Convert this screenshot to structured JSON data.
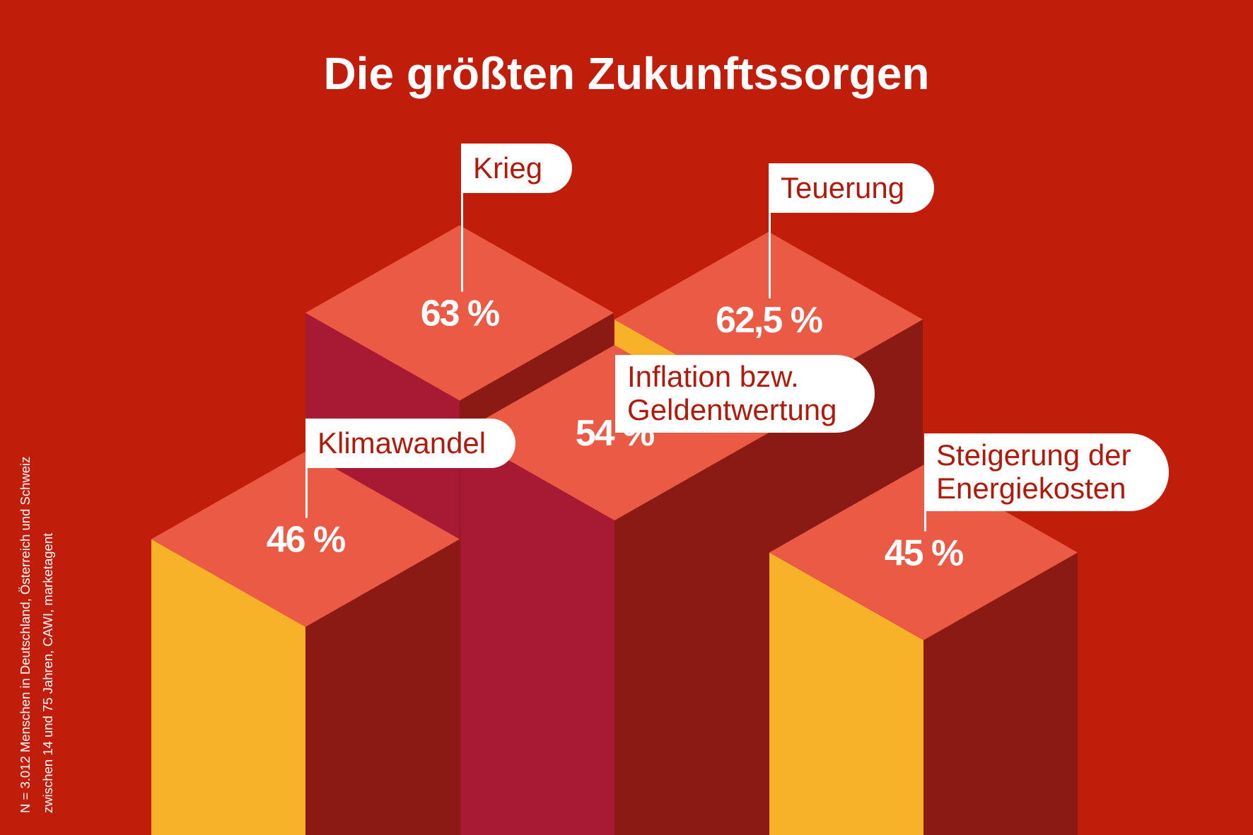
{
  "colors": {
    "background": "#c11d0b",
    "top": "#eb5a44",
    "left_yellow": "#f7b22a",
    "left_crimson": "#a81933",
    "right_dark": "#8a1a13",
    "flag_bg": "#ffffff",
    "flag_text": "#b01a0a"
  },
  "chart_data": {
    "type": "bar",
    "title": "Die größten Zukunftssorgen",
    "unit": "%",
    "categories": [
      "Krieg",
      "Teuerung",
      "Klimawandel",
      "Inflation bzw. Geldentwertung",
      "Steigerung der Energiekosten"
    ],
    "values": [
      63,
      62.5,
      46,
      54,
      45
    ],
    "bars": [
      {
        "name": "Krieg",
        "label_lines": [
          "Krieg"
        ],
        "value": 63,
        "value_label": "63 %",
        "left_face": "left_crimson"
      },
      {
        "name": "Teuerung",
        "label_lines": [
          "Teuerung"
        ],
        "value": 62.5,
        "value_label": "62,5 %",
        "left_face": "left_yellow"
      },
      {
        "name": "Klimawandel",
        "label_lines": [
          "Klimawandel"
        ],
        "value": 46,
        "value_label": "46 %",
        "left_face": "left_yellow"
      },
      {
        "name": "Inflation bzw. Geldentwertung",
        "label_lines": [
          "Inflation bzw.",
          "Geldentwertung"
        ],
        "value": 54,
        "value_label": "54 %",
        "left_face": "left_crimson"
      },
      {
        "name": "Steigerung der Energiekosten",
        "label_lines": [
          "Steigerung der",
          "Energiekosten"
        ],
        "value": 45,
        "value_label": "45 %",
        "left_face": "left_yellow"
      }
    ],
    "source_lines": [
      "N = 3.012 Menschen in Deutschland, Österreich und Schweiz",
      "zwischen 14 und 75 Jahren, CAWI, marketagent"
    ]
  }
}
